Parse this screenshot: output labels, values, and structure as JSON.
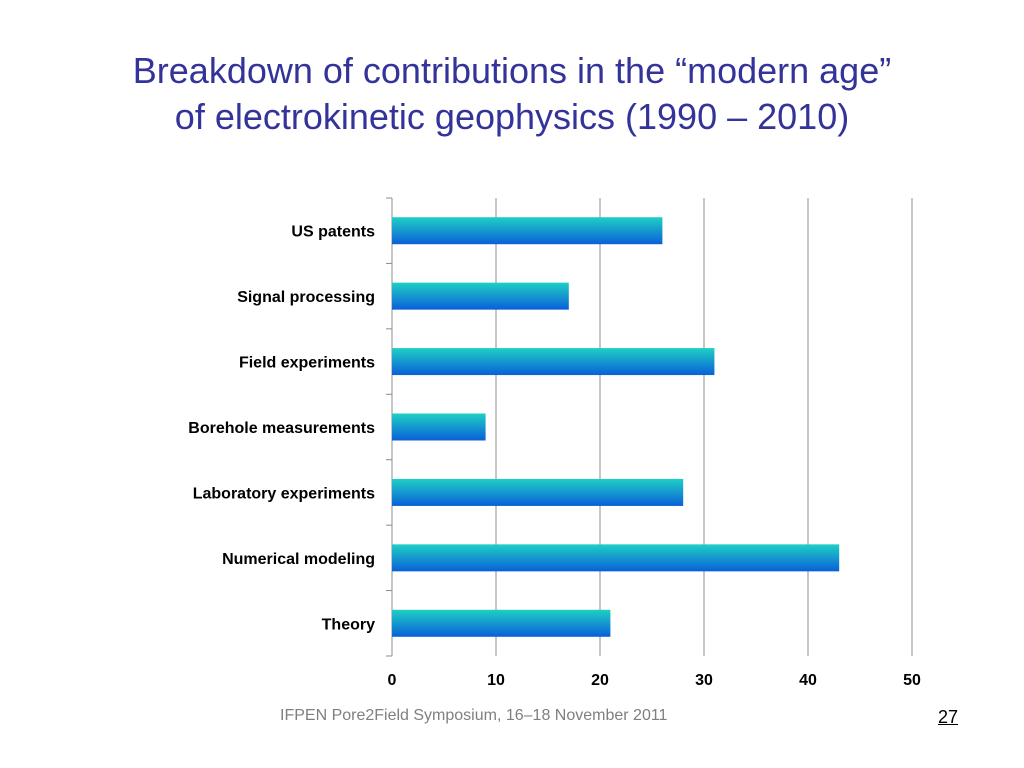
{
  "slide": {
    "title_line1": "Breakdown of contributions in the “modern age”",
    "title_line2": "of electrokinetic geophysics (1990 – 2010)",
    "footer": "IFPEN Pore2Field Symposium, 16–18 November 2011",
    "page_number": "27"
  },
  "colors": {
    "title": "#333399",
    "bar_top": "#1fd0c4",
    "bar_bottom": "#0a5fd8",
    "grid": "#8c8c8c",
    "footer": "#7f7f7f"
  },
  "chart_data": {
    "type": "bar",
    "orientation": "horizontal",
    "categories": [
      "US patents",
      "Signal processing",
      "Field experiments",
      "Borehole measurements",
      "Laboratory experiments",
      "Numerical modeling",
      "Theory"
    ],
    "values": [
      26,
      17,
      31,
      9,
      28,
      43,
      21
    ],
    "xlim": [
      0,
      50
    ],
    "xticks": [
      0,
      10,
      20,
      30,
      40,
      50
    ],
    "grid": "vertical",
    "legend": "none"
  }
}
